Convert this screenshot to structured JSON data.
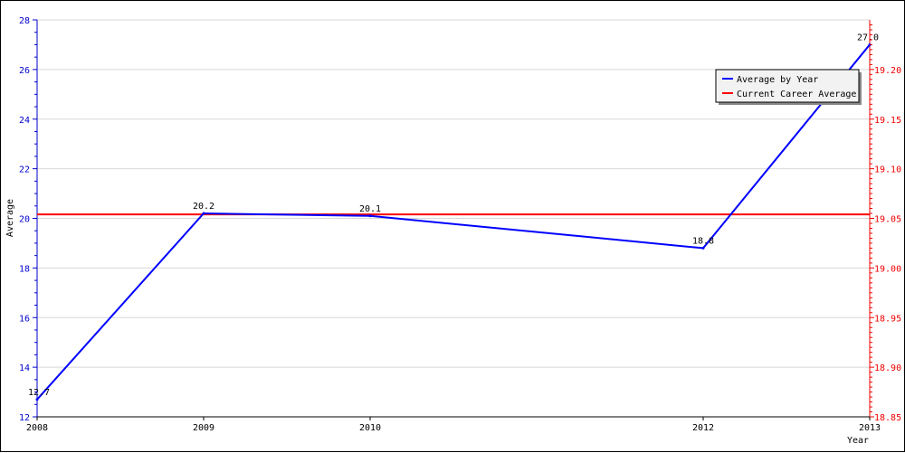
{
  "chart_data": {
    "type": "line",
    "xlabel": "Year",
    "ylabel": "Average",
    "x_tick_labels": [
      "2008",
      "2009",
      "2010",
      "2012",
      "2013"
    ],
    "ylim": [
      12,
      28
    ],
    "y_ticks": [
      12,
      14,
      16,
      18,
      20,
      22,
      24,
      26,
      28
    ],
    "y2lim": [
      18.85,
      19.25
    ],
    "y2_ticks": [
      "18.85",
      "18.90",
      "18.95",
      "19.00",
      "19.05",
      "19.10",
      "19.15",
      "19.20"
    ],
    "grid": true,
    "legend_position": "top-right",
    "series": [
      {
        "name": "Average by Year",
        "color": "#0000ff",
        "axis": "left",
        "x": [
          "2008",
          "2009",
          "2010",
          "2012",
          "2013"
        ],
        "values": [
          12.7,
          20.2,
          20.1,
          18.8,
          27.0
        ],
        "labels": [
          "12.7",
          "20.2",
          "20.1",
          "18.8",
          "27.0"
        ]
      },
      {
        "name": "Current Career Average",
        "color": "#ff0000",
        "axis": "right",
        "value": 19.054
      }
    ]
  }
}
